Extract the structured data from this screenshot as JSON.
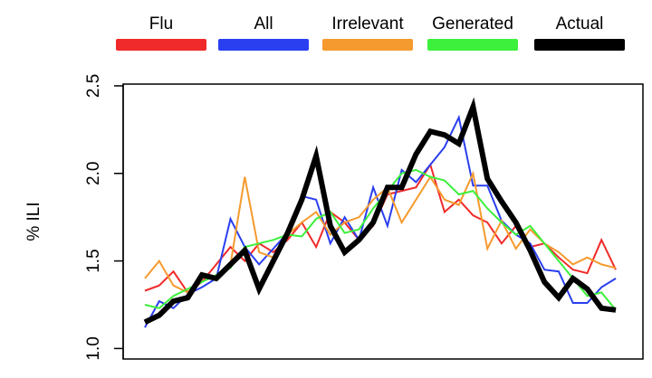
{
  "chart_data": {
    "type": "line",
    "ylabel": "% ILI",
    "categories": [
      null,
      null,
      null,
      null,
      null,
      null,
      null,
      null,
      null,
      null,
      null,
      null,
      null,
      null,
      null,
      null,
      null,
      null,
      null,
      null,
      null,
      null,
      null,
      null,
      null,
      null,
      null,
      null,
      null,
      null,
      null,
      null,
      null,
      null
    ],
    "ylim": [
      0.94,
      2.51
    ],
    "yticks": [
      {
        "value": 1,
        "label": "1.0"
      },
      1.5,
      {
        "value": 2,
        "label": "2.0"
      },
      2.5
    ],
    "series": [
      {
        "name": "Flu",
        "color": "#f02a2a",
        "values": [
          1.33,
          1.36,
          1.44,
          1.32,
          1.38,
          1.48,
          1.58,
          1.5,
          1.6,
          1.55,
          1.62,
          1.72,
          1.58,
          1.78,
          1.72,
          1.62,
          1.7,
          1.88,
          1.9,
          1.92,
          2.05,
          1.78,
          1.85,
          1.76,
          1.72,
          1.6,
          1.7,
          1.58,
          1.6,
          1.52,
          1.45,
          1.43,
          1.62,
          1.45
        ]
      },
      {
        "name": "All",
        "color": "#2a3ff0",
        "values": [
          1.12,
          1.27,
          1.23,
          1.31,
          1.35,
          1.4,
          1.74,
          1.58,
          1.48,
          1.57,
          1.66,
          1.87,
          1.85,
          1.6,
          1.75,
          1.62,
          1.92,
          1.7,
          2.02,
          1.95,
          2.05,
          2.15,
          2.32,
          1.93,
          1.93,
          1.73,
          1.65,
          1.6,
          1.45,
          1.44,
          1.26,
          1.26,
          1.35,
          1.4
        ]
      },
      {
        "name": "Irrelevant",
        "color": "#f59a2e",
        "values": [
          1.4,
          1.5,
          1.36,
          1.32,
          1.42,
          1.4,
          1.48,
          1.98,
          1.55,
          1.52,
          1.65,
          1.72,
          1.78,
          1.65,
          1.72,
          1.75,
          1.85,
          1.92,
          1.72,
          1.85,
          1.98,
          1.85,
          1.82,
          2.0,
          1.57,
          1.73,
          1.57,
          1.68,
          1.6,
          1.55,
          1.48,
          1.52,
          1.48,
          1.46
        ]
      },
      {
        "name": "Generated",
        "color": "#3cf03c",
        "values": [
          1.25,
          1.23,
          1.3,
          1.34,
          1.38,
          1.42,
          1.46,
          1.58,
          1.6,
          1.62,
          1.65,
          1.64,
          1.74,
          1.78,
          1.66,
          1.68,
          1.8,
          1.9,
          2.0,
          2.02,
          1.98,
          1.96,
          1.88,
          1.9,
          1.8,
          1.72,
          1.65,
          1.7,
          1.6,
          1.5,
          1.4,
          1.3,
          1.32,
          1.22
        ]
      },
      {
        "name": "Actual",
        "color": "#000000",
        "values": [
          1.15,
          1.19,
          1.27,
          1.29,
          1.42,
          1.4,
          1.48,
          1.56,
          1.34,
          1.5,
          1.66,
          1.85,
          2.1,
          1.7,
          1.55,
          1.62,
          1.72,
          1.92,
          1.92,
          2.11,
          2.24,
          2.22,
          2.17,
          2.38,
          1.97,
          1.84,
          1.72,
          1.56,
          1.38,
          1.29,
          1.4,
          1.34,
          1.23,
          1.22
        ]
      }
    ]
  }
}
